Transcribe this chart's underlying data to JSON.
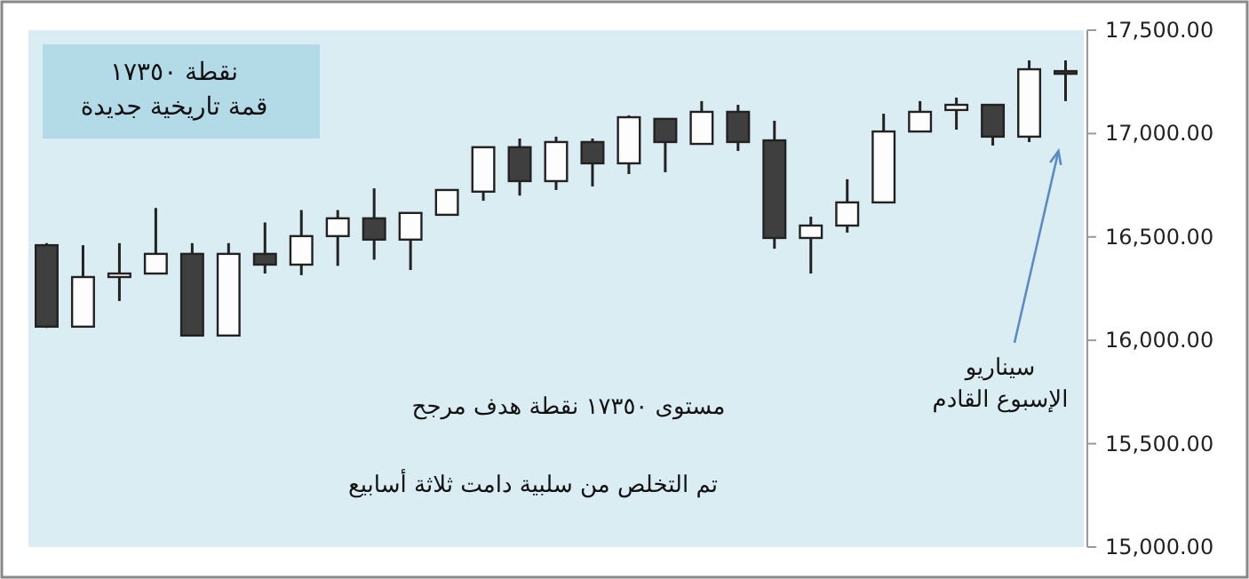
{
  "chart_data": {
    "type": "candlestick",
    "categories": [
      null,
      null,
      null,
      null,
      null,
      null,
      null,
      null,
      null,
      null,
      null,
      null,
      null,
      null,
      null,
      null,
      null,
      null,
      null,
      null,
      null,
      null,
      null,
      null,
      null,
      null,
      null,
      null,
      null
    ],
    "ohlc": [
      [
        16460,
        16470,
        16060,
        16066
      ],
      [
        16066,
        16460,
        16066,
        16306
      ],
      [
        16306,
        16470,
        16190,
        16323
      ],
      [
        16323,
        16640,
        16323,
        16418
      ],
      [
        16418,
        16470,
        16023,
        16023
      ],
      [
        16023,
        16470,
        16023,
        16418
      ],
      [
        16418,
        16570,
        16323,
        16366
      ],
      [
        16366,
        16630,
        16315,
        16504
      ],
      [
        16504,
        16630,
        16360,
        16590
      ],
      [
        16590,
        16735,
        16390,
        16487
      ],
      [
        16487,
        16616,
        16340,
        16616
      ],
      [
        16607,
        16727,
        16607,
        16727
      ],
      [
        16719,
        16934,
        16675,
        16934
      ],
      [
        16934,
        16976,
        16700,
        16770
      ],
      [
        16770,
        16985,
        16727,
        16959
      ],
      [
        16959,
        16976,
        16744,
        16856
      ],
      [
        16856,
        17088,
        16804,
        17079
      ],
      [
        17071,
        17071,
        16813,
        16959
      ],
      [
        16950,
        17157,
        16950,
        17105
      ],
      [
        17105,
        17139,
        16916,
        16959
      ],
      [
        16967,
        17062,
        16443,
        16495
      ],
      [
        16495,
        16598,
        16323,
        16555
      ],
      [
        16555,
        16779,
        16521,
        16667
      ],
      [
        16667,
        17096,
        16667,
        17010
      ],
      [
        17010,
        17157,
        17010,
        17105
      ],
      [
        17114,
        17174,
        17019,
        17139
      ],
      [
        17139,
        17139,
        16942,
        16985
      ],
      [
        16985,
        17354,
        16959,
        17311
      ],
      [
        17302,
        17354,
        17157,
        17296
      ]
    ],
    "ylim": [
      15000,
      17500
    ],
    "yticks": [
      {
        "value": 15000,
        "label": "15,000.00"
      },
      {
        "value": 15500,
        "label": "15,500.00"
      },
      {
        "value": 16000,
        "label": "16,000.00"
      },
      {
        "value": 16500,
        "label": "16,500.00"
      },
      {
        "value": 17000,
        "label": "17,000.00"
      },
      {
        "value": 17500,
        "label": "17,500.00"
      }
    ],
    "annotations": [
      "نقطة ١٧٣٥٠\nقمة تاريخية جديدة",
      "مستوى ١٧٣٥٠ نقطة هدف مرجح",
      "تم التخلص من سلبية دامت ثلاثة أسابيع",
      "سيناريو\nالإسبوع القادم"
    ]
  }
}
